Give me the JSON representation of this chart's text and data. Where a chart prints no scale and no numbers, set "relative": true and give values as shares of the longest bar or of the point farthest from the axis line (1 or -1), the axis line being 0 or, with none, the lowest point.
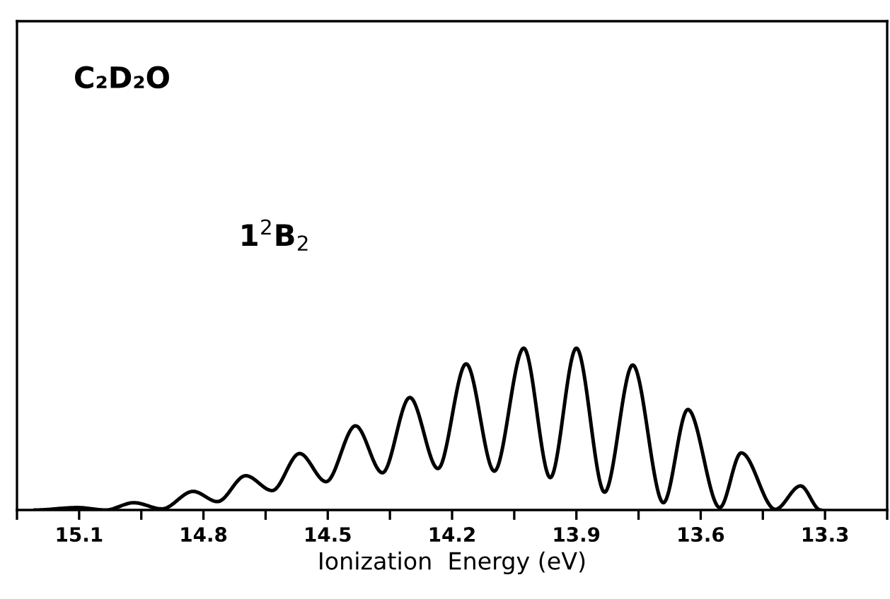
{
  "chart_data": {
    "type": "line",
    "relative": true,
    "xlabel": "Ionization  Energy (eV)",
    "annotations": [
      "C₂D₂O",
      "1$^{2}$B$_{2}$"
    ],
    "xlim": [
      15.25,
      13.15
    ],
    "xticks": [
      {
        "value": 15.25,
        "label": null
      },
      15.1,
      {
        "value": 14.95,
        "label": null
      },
      14.8,
      {
        "value": 14.65,
        "label": null
      },
      14.5,
      {
        "value": 14.35,
        "label": null
      },
      14.2,
      {
        "value": 14.05,
        "label": null
      },
      13.9,
      {
        "value": 13.75,
        "label": null
      },
      13.6,
      {
        "value": 13.45,
        "label": null
      },
      13.3,
      {
        "value": 13.15,
        "label": null
      }
    ],
    "grid": false,
    "legend": false,
    "marker": "none",
    "line_style": "solid",
    "series": [
      {
        "color": "#000000",
        "x": [
          15.206,
          15.104,
          15.036,
          14.968,
          14.9,
          14.825,
          14.766,
          14.698,
          14.634,
          14.568,
          14.504,
          14.433,
          14.368,
          14.302,
          14.234,
          14.166,
          14.098,
          14.027,
          13.963,
          13.9,
          13.832,
          13.764,
          13.69,
          13.631,
          13.554,
          13.502,
          13.42,
          13.359,
          13.311
        ],
        "values": [
          0,
          0.015,
          0,
          0.045,
          0.007,
          0.115,
          0.052,
          0.212,
          0.12,
          0.349,
          0.175,
          0.52,
          0.23,
          0.695,
          0.256,
          0.903,
          0.24,
          1.0,
          0.2,
          1.0,
          0.11,
          0.896,
          0.045,
          0.621,
          0.015,
          0.353,
          0.004,
          0.149,
          0
        ]
      }
    ]
  }
}
